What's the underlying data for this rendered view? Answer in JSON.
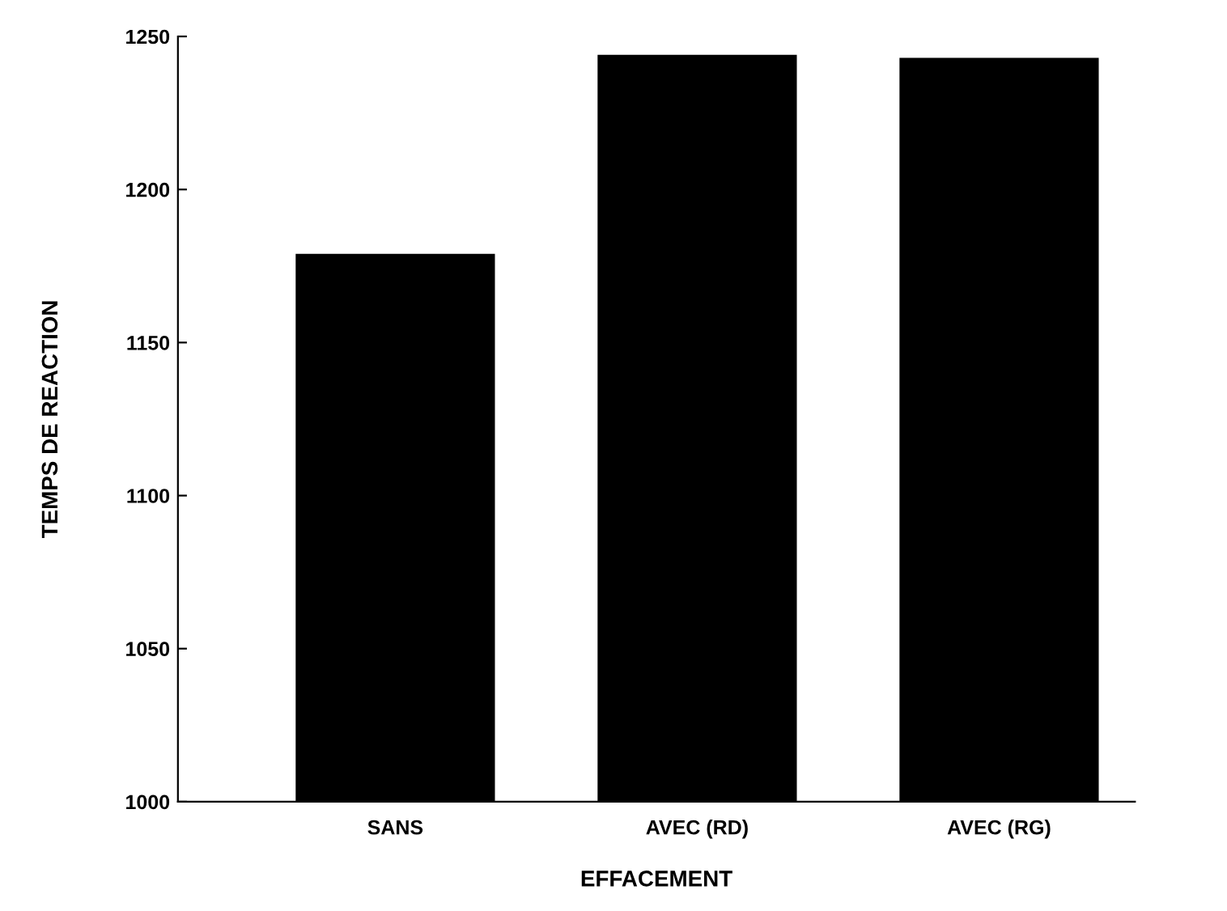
{
  "chart_data": {
    "type": "bar",
    "xlabel": "EFFACEMENT",
    "ylabel": "TEMPS DE REACTION",
    "categories": [
      "SANS",
      "AVEC (RD)",
      "AVEC (RG)"
    ],
    "values": [
      1179,
      1244,
      1243
    ],
    "color": "#000000",
    "ylim": [
      1000,
      1250
    ],
    "yticks": [
      1000,
      1050,
      1100,
      1150,
      1200,
      1250
    ],
    "grid": false
  }
}
